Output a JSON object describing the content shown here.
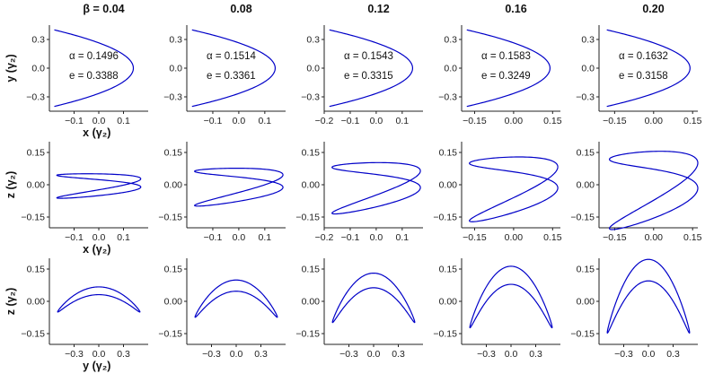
{
  "chart_data": {
    "type": "line",
    "line_color": "#0000c8",
    "axis_color": "#222222",
    "columns": [
      {
        "beta_label": "β = 0.04",
        "alpha_text": "α = 0.1496",
        "e_text": "e = 0.3388",
        "beta": 0.04
      },
      {
        "beta_label": "0.08",
        "alpha_text": "α = 0.1514",
        "e_text": "e = 0.3361",
        "beta": 0.08
      },
      {
        "beta_label": "0.12",
        "alpha_text": "α = 0.1543",
        "e_text": "e = 0.3315",
        "beta": 0.12
      },
      {
        "beta_label": "0.16",
        "alpha_text": "α = 0.1583",
        "e_text": "e = 0.3249",
        "beta": 0.16
      },
      {
        "beta_label": "0.20",
        "alpha_text": "α = 0.1632",
        "e_text": "e = 0.3158",
        "beta": 0.2
      }
    ],
    "rows": [
      {
        "name": "xy",
        "ylabel": "y (γ₂)",
        "yticks": [
          {
            "value": 0.3,
            "label": "0.3"
          },
          {
            "value": 0.0,
            "label": "0.0"
          },
          {
            "value": -0.3,
            "label": "−0.3"
          }
        ],
        "ylim": [
          -0.45,
          0.45
        ],
        "xlim_per_column": [
          [
            -0.2,
            0.2
          ],
          [
            -0.2,
            0.18
          ],
          [
            -0.2,
            0.18
          ],
          [
            -0.2,
            0.18
          ],
          [
            -0.21,
            0.17
          ]
        ],
        "xticks_per_column": [
          [
            {
              "value": -0.1,
              "label": "−0.1"
            },
            {
              "value": 0.0,
              "label": "0.0"
            },
            {
              "value": 0.1,
              "label": "0.1"
            }
          ],
          [
            {
              "value": -0.1,
              "label": "−0.1"
            },
            {
              "value": 0.0,
              "label": "0.0"
            },
            {
              "value": 0.1,
              "label": "0.1"
            }
          ],
          [
            {
              "value": -0.2,
              "label": "−0.2"
            },
            {
              "value": -0.1,
              "label": "−0.1"
            },
            {
              "value": 0.0,
              "label": "0.0"
            },
            {
              "value": 0.1,
              "label": "0.1"
            }
          ],
          [
            {
              "value": -0.15,
              "label": "−0.15"
            },
            {
              "value": 0.0,
              "label": "0.00"
            },
            {
              "value": 0.15,
              "label": "0.15"
            }
          ],
          [
            {
              "value": -0.15,
              "label": "−0.15"
            },
            {
              "value": 0.0,
              "label": "0.00"
            },
            {
              "value": 0.15,
              "label": "0.15"
            }
          ]
        ],
        "xlabel_first": "x (γ₂)"
      },
      {
        "name": "xz",
        "ylabel": "z (γ₂)",
        "yticks": [
          {
            "value": 0.15,
            "label": "0.15"
          },
          {
            "value": 0.0,
            "label": "0.00"
          },
          {
            "value": -0.15,
            "label": "−0.15"
          }
        ],
        "ylim": [
          -0.2,
          0.2
        ],
        "xlim_per_column": [
          [
            -0.2,
            0.2
          ],
          [
            -0.2,
            0.18
          ],
          [
            -0.2,
            0.18
          ],
          [
            -0.2,
            0.18
          ],
          [
            -0.21,
            0.17
          ]
        ],
        "xticks_per_column": [
          [
            {
              "value": -0.1,
              "label": "−0.1"
            },
            {
              "value": 0.0,
              "label": "0.0"
            },
            {
              "value": 0.1,
              "label": "0.1"
            }
          ],
          [
            {
              "value": -0.1,
              "label": "−0.1"
            },
            {
              "value": 0.0,
              "label": "0.0"
            },
            {
              "value": 0.1,
              "label": "0.1"
            }
          ],
          [
            {
              "value": -0.2,
              "label": "−0.2"
            },
            {
              "value": -0.1,
              "label": "−0.1"
            },
            {
              "value": 0.0,
              "label": "0.0"
            },
            {
              "value": 0.1,
              "label": "0.1"
            }
          ],
          [
            {
              "value": -0.15,
              "label": "−0.15"
            },
            {
              "value": 0.0,
              "label": "0.00"
            },
            {
              "value": 0.15,
              "label": "0.15"
            }
          ],
          [
            {
              "value": -0.15,
              "label": "−0.15"
            },
            {
              "value": 0.0,
              "label": "0.00"
            },
            {
              "value": 0.15,
              "label": "0.15"
            }
          ]
        ],
        "xlabel_first": "x (γ₂)"
      },
      {
        "name": "yz",
        "ylabel": "z (γ₂)",
        "yticks": [
          {
            "value": 0.15,
            "label": "0.15"
          },
          {
            "value": 0.0,
            "label": "0.00"
          },
          {
            "value": -0.15,
            "label": "−0.15"
          }
        ],
        "ylim": [
          -0.2,
          0.2
        ],
        "xlim_per_column": [
          [
            -0.6,
            0.6
          ],
          [
            -0.6,
            0.6
          ],
          [
            -0.6,
            0.6
          ],
          [
            -0.6,
            0.6
          ],
          [
            -0.6,
            0.6
          ]
        ],
        "xticks_per_column": [
          [
            {
              "value": -0.3,
              "label": "−0.3"
            },
            {
              "value": 0.0,
              "label": "0.0"
            },
            {
              "value": 0.3,
              "label": "0.3"
            }
          ],
          [
            {
              "value": -0.3,
              "label": "−0.3"
            },
            {
              "value": 0.0,
              "label": "0.0"
            },
            {
              "value": 0.3,
              "label": "0.3"
            }
          ],
          [
            {
              "value": -0.3,
              "label": "−0.3"
            },
            {
              "value": 0.0,
              "label": "0.0"
            },
            {
              "value": 0.3,
              "label": "0.3"
            }
          ],
          [
            {
              "value": -0.3,
              "label": "−0.3"
            },
            {
              "value": 0.0,
              "label": "0.0"
            },
            {
              "value": 0.3,
              "label": "0.3"
            }
          ],
          [
            {
              "value": -0.3,
              "label": "−0.3"
            },
            {
              "value": 0.0,
              "label": "0.0"
            },
            {
              "value": 0.3,
              "label": "0.3"
            }
          ]
        ],
        "xlabel_first": "y (γ₂)"
      }
    ]
  }
}
